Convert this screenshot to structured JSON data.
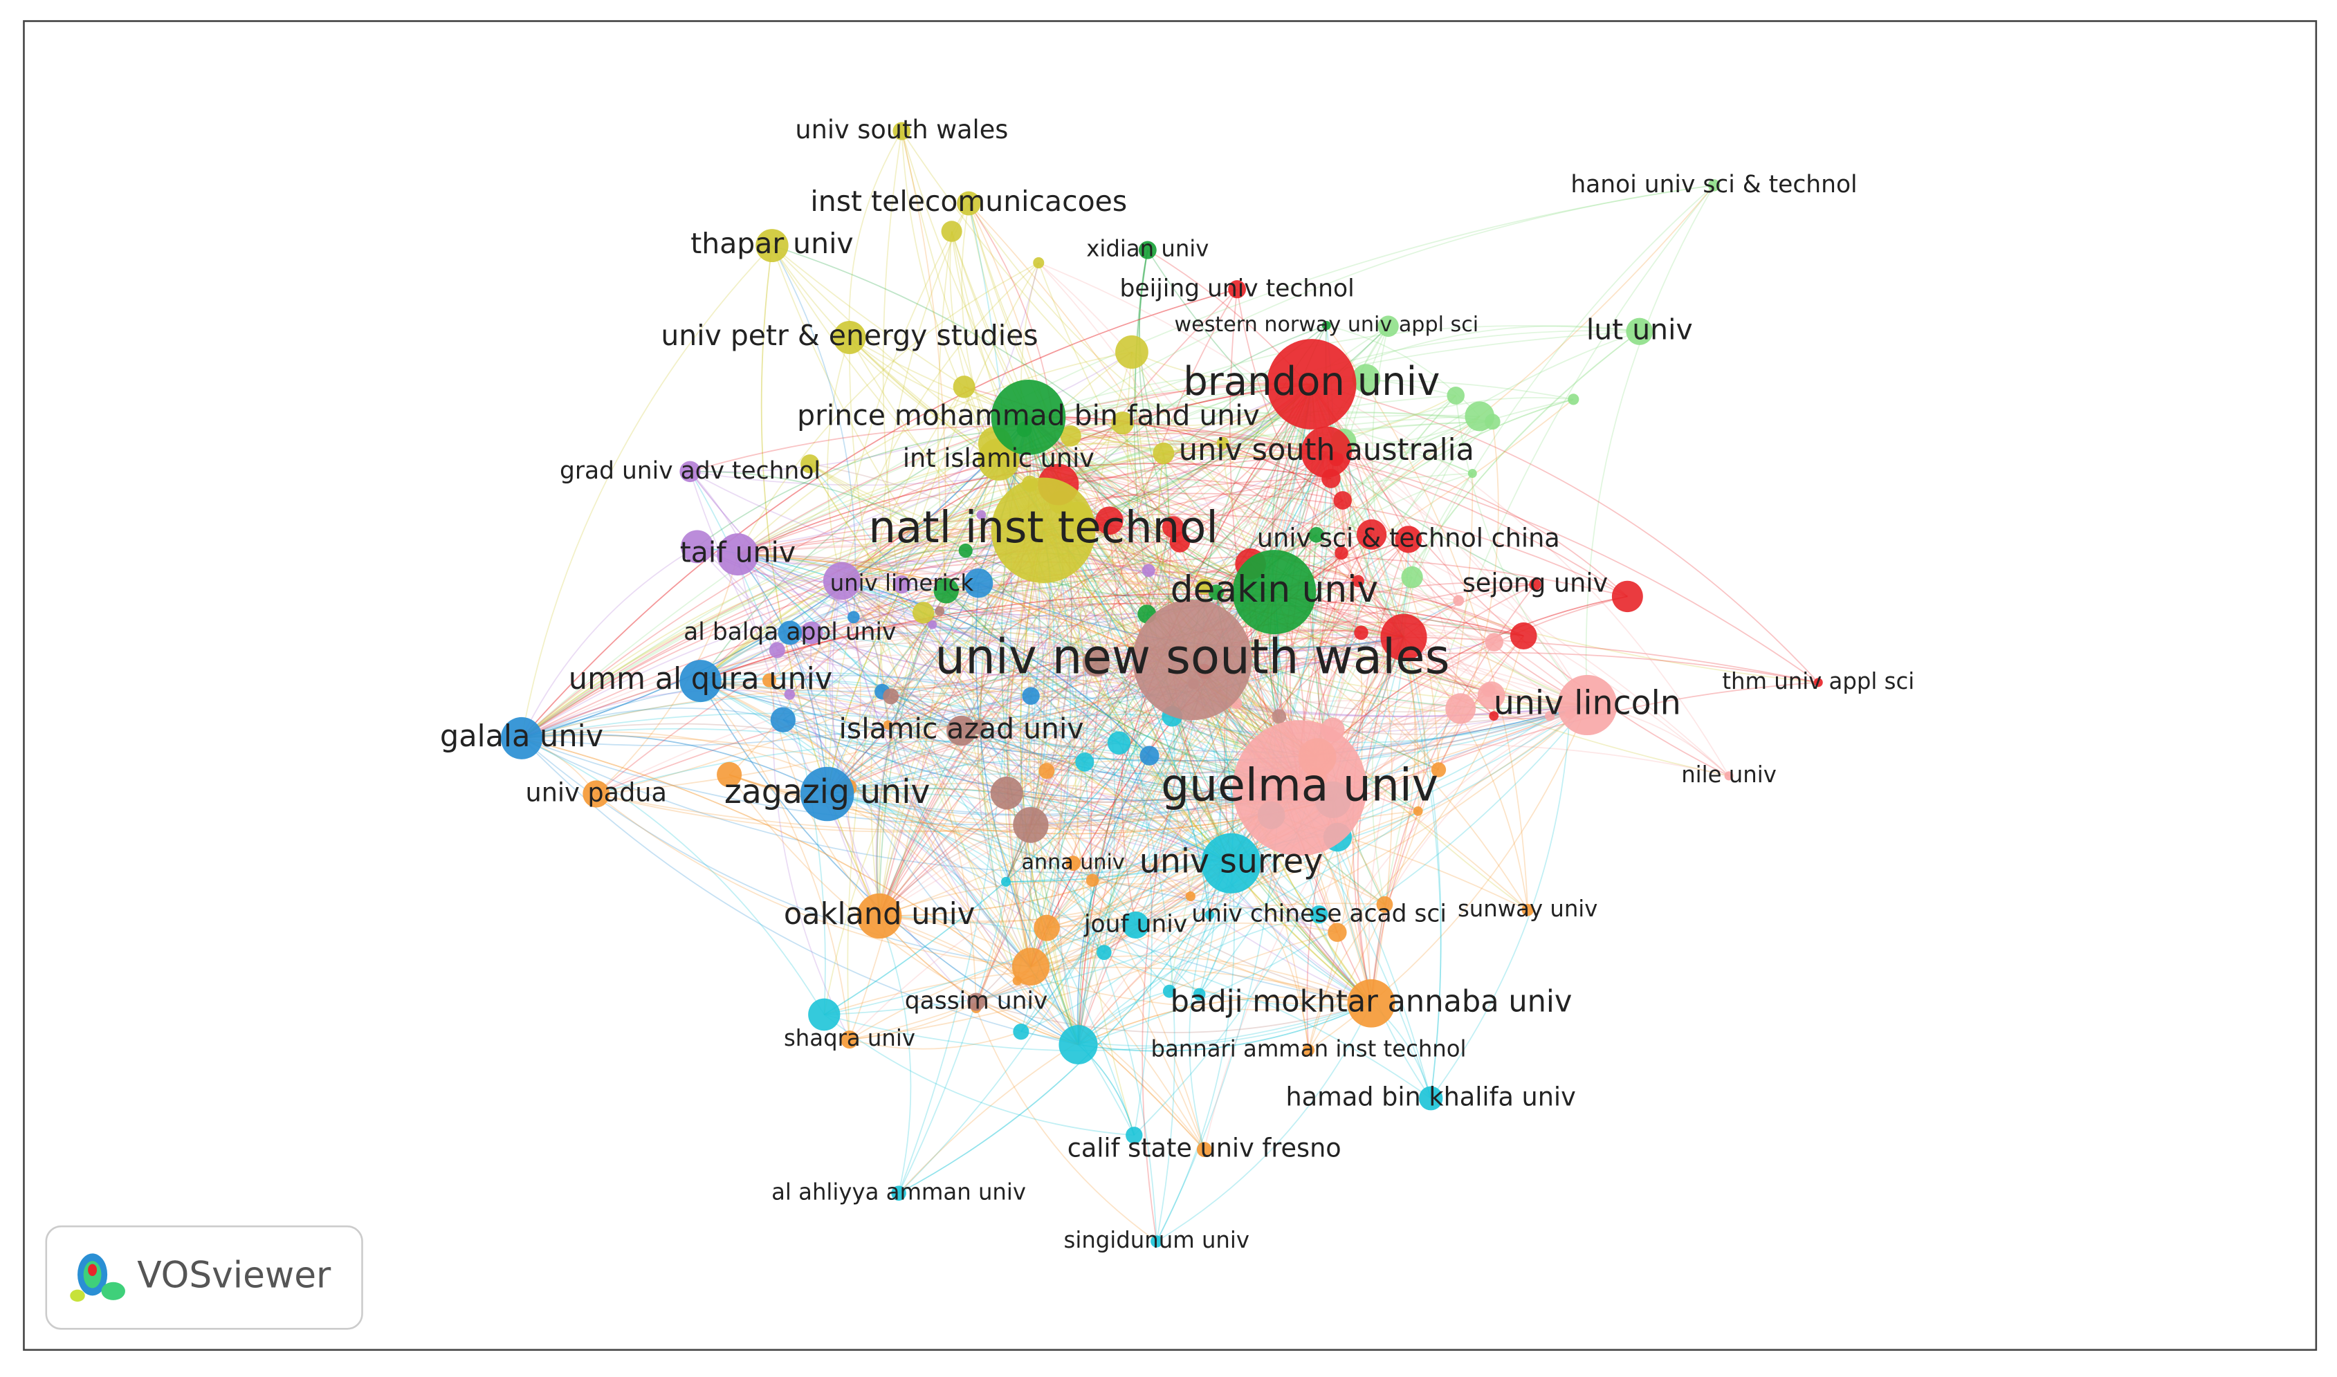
{
  "nodes": [
    {
      "label": "univ south wales",
      "color": "#cfc936"
    },
    {
      "label": "inst telecomunicacoes",
      "color": "#cfc936"
    },
    {
      "label": "thapar univ",
      "color": "#cfc936"
    },
    {
      "label": "xidian univ",
      "color": "#1aa33a"
    },
    {
      "label": "beijing univ technol",
      "color": "#e8262a"
    },
    {
      "label": "hanoi univ sci & technol",
      "color": "#8fe08a"
    },
    {
      "label": "western norway univ appl sci",
      "color": "#1aa33a"
    },
    {
      "label": "univ petr & energy studies",
      "color": "#cfc936"
    },
    {
      "label": "lut univ",
      "color": "#8fe08a"
    },
    {
      "label": "brandon univ",
      "color": "#e8262a"
    },
    {
      "label": "prince mohammad bin fahd univ",
      "color": "#1aa33a"
    },
    {
      "label": "int islamic univ",
      "color": "#cfc936"
    },
    {
      "label": "univ south australia",
      "color": "#e8262a"
    },
    {
      "label": "grad univ adv technol",
      "color": "#b47fd6"
    },
    {
      "label": "natl inst technol",
      "color": "#cfc936"
    },
    {
      "label": "univ sci & technol china",
      "color": "#e8262a"
    },
    {
      "label": "taif univ",
      "color": "#b47fd6"
    },
    {
      "label": "univ limerick",
      "color": "#b47fd6"
    },
    {
      "label": "deakin univ",
      "color": "#1aa33a"
    },
    {
      "label": "sejong univ",
      "color": "#e8262a"
    },
    {
      "label": "al balqa appl univ",
      "color": "#2a8fd4"
    },
    {
      "label": "univ new south wales",
      "color": "#c08a84"
    },
    {
      "label": "umm al qura univ",
      "color": "#2a8fd4"
    },
    {
      "label": "thm univ appl sci",
      "color": "#e8262a"
    },
    {
      "label": "univ lincoln",
      "color": "#f8a8a8"
    },
    {
      "label": "galala univ",
      "color": "#2a8fd4"
    },
    {
      "label": "islamic azad univ",
      "color": "#b47f77"
    },
    {
      "label": "nile univ",
      "color": "#f8a8a8"
    },
    {
      "label": "univ padua",
      "color": "#f59a37"
    },
    {
      "label": "zagazig univ",
      "color": "#2a8fd4"
    },
    {
      "label": "guelma univ",
      "color": "#f8a8a8"
    },
    {
      "label": "anna univ",
      "color": "#f59a37"
    },
    {
      "label": "univ surrey",
      "color": "#1ec4d8"
    },
    {
      "label": "oakland univ",
      "color": "#f59a37"
    },
    {
      "label": "jouf univ",
      "color": "#1ec4d8"
    },
    {
      "label": "univ chinese acad sci",
      "color": "#1ec4d8"
    },
    {
      "label": "sunway univ",
      "color": "#f59a37"
    },
    {
      "label": "qassim univ",
      "color": "#b47f77"
    },
    {
      "label": "badji mokhtar annaba univ",
      "color": "#f59a37"
    },
    {
      "label": "shaqra univ",
      "color": "#f59a37"
    },
    {
      "label": "bannari amman inst technol",
      "color": "#f59a37"
    },
    {
      "label": "hamad bin khalifa univ",
      "color": "#1ec4d8"
    },
    {
      "label": "calif state univ fresno",
      "color": "#f59a37"
    },
    {
      "label": "al ahliyya amman univ",
      "color": "#1ec4d8"
    },
    {
      "label": "singidunum univ",
      "color": "#1ec4d8"
    }
  ],
  "logo": "VOSviewer"
}
